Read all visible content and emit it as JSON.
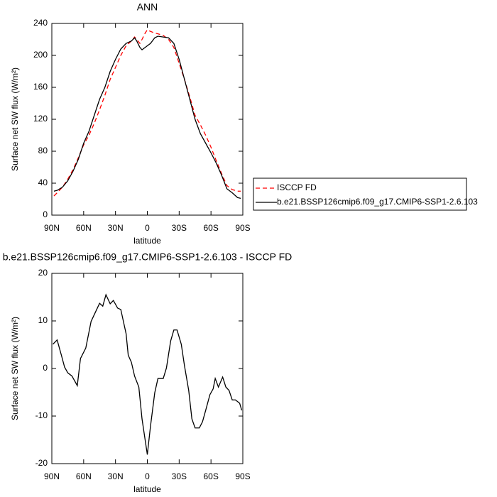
{
  "chart_data": [
    {
      "type": "line",
      "title": "ANN",
      "xlabel": "latitude",
      "ylabel": "Surface net SW flux (W/m²)",
      "x": [
        88,
        85,
        80,
        75,
        70,
        65,
        60,
        55,
        50,
        45,
        40,
        35,
        30,
        25,
        20,
        15,
        12,
        10,
        7,
        5,
        2,
        0,
        -3,
        -7,
        -10,
        -15,
        -20,
        -25,
        -30,
        -35,
        -40,
        -45,
        -50,
        -55,
        -60,
        -65,
        -70,
        -75,
        -80,
        -85,
        -88
      ],
      "series": [
        {
          "name": "ISCCP FD",
          "color": "#ff0000",
          "style": "dashed",
          "values": [
            24,
            28,
            35,
            45,
            57,
            72,
            88,
            100,
            115,
            132,
            150,
            170,
            185,
            200,
            212,
            218,
            223,
            220,
            215,
            220,
            228,
            232,
            230,
            228,
            227,
            225,
            220,
            210,
            190,
            170,
            148,
            125,
            113,
            100,
            85,
            68,
            52,
            37,
            32,
            30,
            30
          ]
        },
        {
          "name": "b.e21.BSSP126cmip6.f09_g17.CMIP6-SSP1-2.6.103",
          "color": "#000000",
          "style": "solid",
          "values": [
            30,
            31,
            35,
            43,
            55,
            70,
            90,
            105,
            125,
            145,
            160,
            180,
            195,
            208,
            215,
            218,
            222,
            218,
            210,
            207,
            210,
            212,
            215,
            222,
            224,
            223,
            222,
            215,
            195,
            170,
            145,
            120,
            102,
            90,
            78,
            65,
            50,
            33,
            28,
            22,
            21
          ]
        }
      ],
      "xlim": [
        90,
        -90
      ],
      "xticks": [
        {
          "value": 90,
          "label": "90N"
        },
        {
          "value": 60,
          "label": "60N"
        },
        {
          "value": 30,
          "label": "30N"
        },
        0,
        {
          "value": -30,
          "label": "30S"
        },
        {
          "value": -60,
          "label": "60S"
        },
        {
          "value": -90,
          "label": "90S"
        }
      ],
      "ylim": [
        0,
        240
      ],
      "yticks": [
        0,
        40,
        80,
        120,
        160,
        200,
        240
      ],
      "legend": "right"
    },
    {
      "type": "line",
      "title": "b.e21.BSSP126cmip6.f09_g17.CMIP6-SSP1-2.6.103 - ISCCP FD",
      "xlabel": "latitude",
      "ylabel": "Surface net SW flux (W/m²)",
      "x": [
        89,
        85,
        81,
        78,
        75,
        71,
        66,
        63,
        58,
        53,
        49,
        45,
        42,
        39,
        35,
        32,
        28,
        25,
        20,
        18,
        15,
        12,
        8,
        5,
        2,
        0,
        -3,
        -7,
        -10,
        -15,
        -18,
        -22,
        -25,
        -28,
        -32,
        -35,
        -39,
        -42,
        -45,
        -49,
        -52,
        -55,
        -59,
        -62,
        -64,
        -67,
        -71,
        -74,
        -77,
        -80,
        -83,
        -87,
        -89
      ],
      "series": [
        {
          "color": "#000000",
          "style": "solid",
          "values": [
            5.1,
            6,
            2.8,
            0.3,
            -0.9,
            -1.6,
            -3.6,
            2.1,
            4.3,
            9.9,
            11.8,
            13.7,
            13.1,
            15.5,
            13.6,
            14.3,
            12.7,
            12.4,
            7.3,
            2.8,
            1.3,
            -1.6,
            -3.9,
            -10.6,
            -15.1,
            -18.1,
            -12.1,
            -5.1,
            -2.1,
            -2.1,
            0.1,
            5.8,
            8.1,
            8.1,
            5.1,
            0.6,
            -4.6,
            -10.6,
            -12.5,
            -12.5,
            -11.2,
            -8.8,
            -5.5,
            -4.3,
            -2.1,
            -3.9,
            -1.8,
            -3.9,
            -4.6,
            -6.6,
            -6.6,
            -7.3,
            -8.8
          ]
        }
      ],
      "xlim": [
        90,
        -90
      ],
      "xticks": [
        {
          "value": 90,
          "label": "90N"
        },
        {
          "value": 60,
          "label": "60N"
        },
        {
          "value": 30,
          "label": "30N"
        },
        0,
        {
          "value": -30,
          "label": "30S"
        },
        {
          "value": -60,
          "label": "60S"
        },
        {
          "value": -90,
          "label": "90S"
        }
      ],
      "ylim": [
        -20,
        20
      ],
      "yticks": [
        -20,
        -10,
        0,
        10,
        20
      ]
    }
  ]
}
